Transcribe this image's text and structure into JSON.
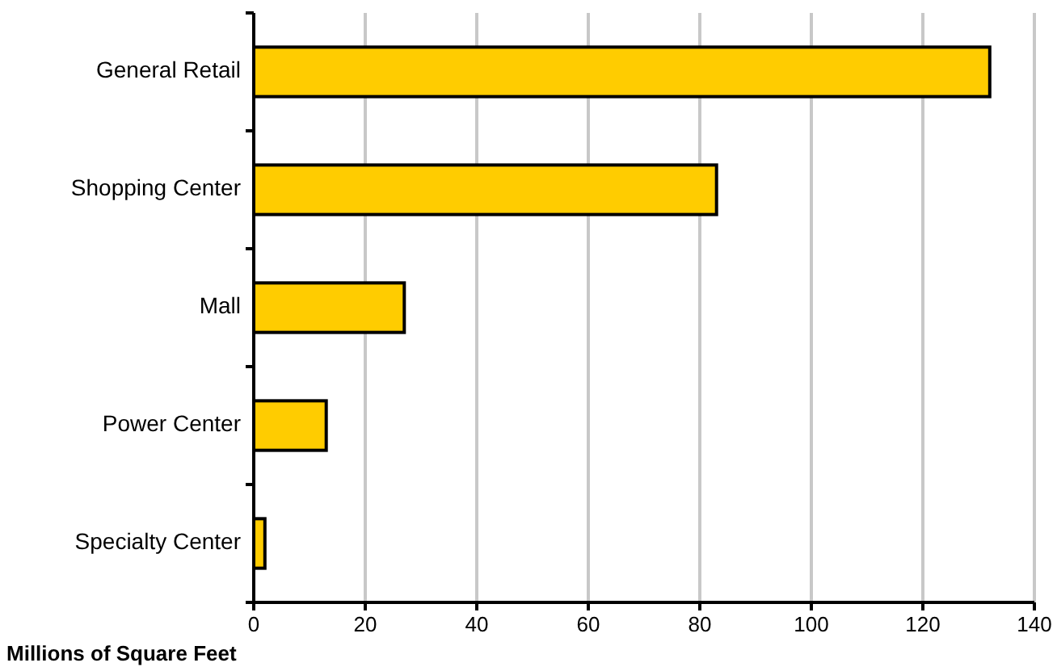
{
  "chart_data": {
    "type": "bar",
    "orientation": "horizontal",
    "xlabel": "Millions of Square Feet",
    "categories": [
      "General Retail",
      "Shopping Center",
      "Mall",
      "Power Center",
      "Specialty Center"
    ],
    "values": [
      132,
      83,
      27,
      13,
      2
    ],
    "color": "#ffcc00",
    "xlim": [
      0,
      140
    ],
    "xticks": [
      0,
      20,
      40,
      60,
      80,
      100,
      120,
      140
    ],
    "grid": "x"
  }
}
